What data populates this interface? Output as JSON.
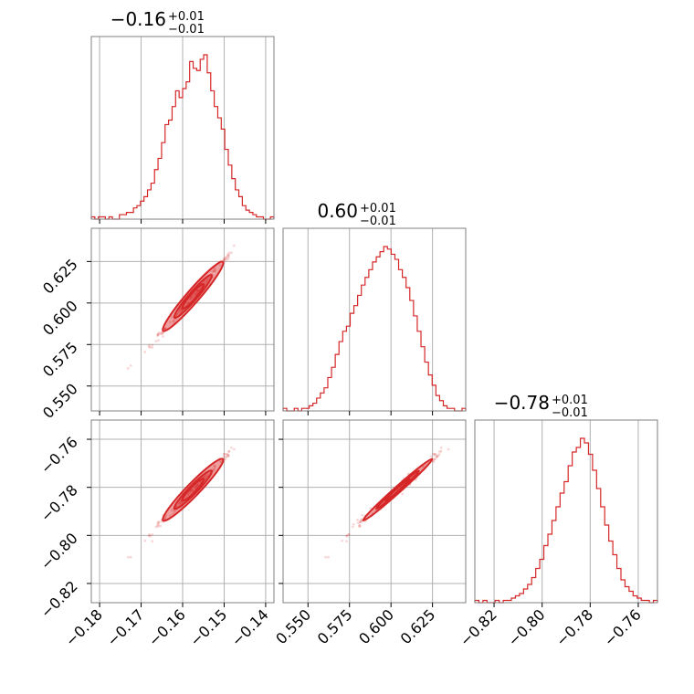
{
  "chart_data": {
    "type": "corner",
    "parameters": [
      {
        "title": {
          "value": "−0.16",
          "plus": "+0.01",
          "minus": "−0.01"
        },
        "range": [
          -0.182,
          -0.138
        ],
        "ticks": [
          -0.18,
          -0.17,
          -0.16,
          -0.15,
          -0.14
        ],
        "tick_labels": [
          "−0.18",
          "−0.17",
          "−0.16",
          "−0.15",
          "−0.14"
        ],
        "center": -0.1575,
        "sigma": 0.0045
      },
      {
        "title": {
          "value": "0.60",
          "plus": "+0.01",
          "minus": "−0.01"
        },
        "range": [
          0.535,
          0.645
        ],
        "ticks": [
          0.55,
          0.575,
          0.6,
          0.625
        ],
        "tick_labels": [
          "0.550",
          "0.575",
          "0.600",
          "0.625"
        ],
        "center": 0.604,
        "sigma": 0.013
      },
      {
        "title": {
          "value": "−0.78",
          "plus": "+0.01",
          "minus": "−0.01"
        },
        "range": [
          -0.828,
          -0.752
        ],
        "ticks": [
          -0.82,
          -0.8,
          -0.78,
          -0.76
        ],
        "tick_labels": [
          "−0.82",
          "−0.80",
          "−0.78",
          "−0.76"
        ],
        "center": -0.781,
        "sigma": 0.008
      }
    ],
    "histogram_counts": [
      [
        1,
        0,
        1,
        1,
        0,
        1,
        0,
        0,
        2,
        2,
        3,
        3,
        5,
        6,
        8,
        10,
        13,
        16,
        22,
        27,
        34,
        42,
        44,
        50,
        57,
        54,
        58,
        61,
        70,
        67,
        66,
        71,
        73,
        65,
        57,
        50,
        45,
        40,
        31,
        24,
        18,
        13,
        10,
        6,
        4,
        3,
        2,
        1,
        1,
        0,
        0,
        1
      ],
      [
        1,
        0,
        0,
        1,
        0,
        1,
        1,
        2,
        3,
        5,
        7,
        9,
        13,
        17,
        22,
        27,
        31,
        33,
        38,
        41,
        45,
        49,
        52,
        55,
        58,
        60,
        62,
        64,
        63,
        61,
        59,
        55,
        52,
        48,
        43,
        37,
        31,
        25,
        19,
        14,
        10,
        6,
        4,
        2,
        1,
        1,
        0,
        0,
        1
      ],
      [
        1,
        0,
        1,
        0,
        0,
        1,
        0,
        1,
        1,
        2,
        3,
        4,
        6,
        8,
        11,
        15,
        19,
        25,
        30,
        36,
        42,
        48,
        53,
        60,
        66,
        68,
        72,
        70,
        65,
        58,
        50,
        42,
        34,
        27,
        21,
        15,
        10,
        7,
        5,
        3,
        2,
        1,
        1,
        0,
        1
      ]
    ],
    "grid": true,
    "color": "#d62728"
  }
}
